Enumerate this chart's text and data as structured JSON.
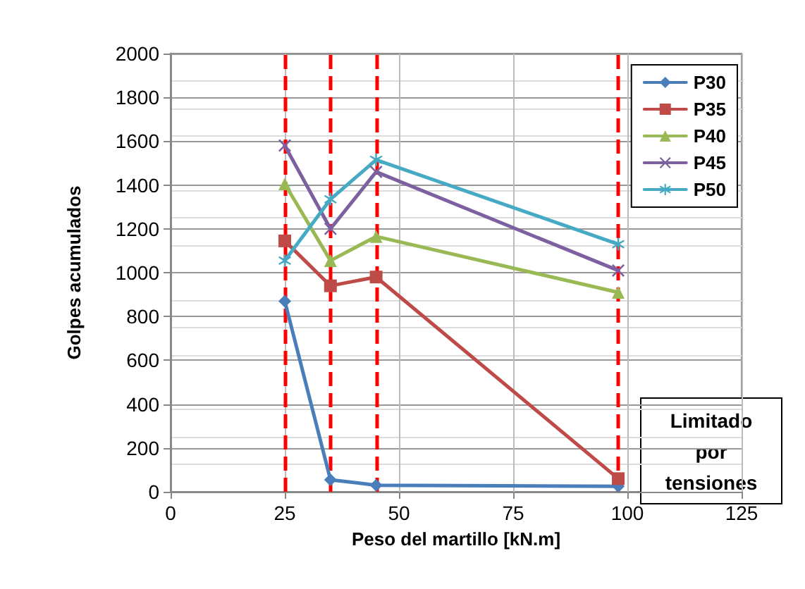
{
  "chart_data": {
    "type": "line",
    "xlabel": "Peso del martillo [kN.m]",
    "ylabel": "Golpes acumulados",
    "xlim": [
      0,
      125
    ],
    "xticks": [
      0,
      25,
      50,
      75,
      100,
      125
    ],
    "ylim": [
      0,
      2000
    ],
    "yticks": [
      0,
      200,
      400,
      600,
      800,
      1000,
      1200,
      1400,
      1600,
      1800,
      2000
    ],
    "grid": true,
    "legend": "top right",
    "line_style": "solid",
    "series": [
      {
        "name": "P30",
        "color": "#4a7ebb",
        "marker": "diamond",
        "x": [
          25,
          35,
          45,
          98
        ],
        "values": [
          870,
          55,
          30,
          25
        ]
      },
      {
        "name": "P35",
        "color": "#be4b48",
        "marker": "square",
        "x": [
          25,
          35,
          45,
          98
        ],
        "values": [
          1145,
          940,
          980,
          60
        ]
      },
      {
        "name": "P40",
        "color": "#98b954",
        "marker": "triangle",
        "x": [
          25,
          35,
          45,
          98
        ],
        "values": [
          1405,
          1055,
          1165,
          910
        ]
      },
      {
        "name": "P45",
        "color": "#7d60a0",
        "marker": "cross",
        "x": [
          25,
          35,
          45,
          98
        ],
        "values": [
          1580,
          1200,
          1460,
          1010
        ]
      },
      {
        "name": "P50",
        "color": "#46aac5",
        "marker": "star",
        "x": [
          25,
          35,
          45,
          98
        ],
        "values": [
          1055,
          1335,
          1515,
          1130
        ]
      }
    ],
    "ref_lines": [
      {
        "axis": "x",
        "value": 25,
        "color": "#ff0000",
        "line_style": "dashed"
      },
      {
        "axis": "x",
        "value": 35,
        "color": "#ff0000",
        "line_style": "dashed"
      },
      {
        "axis": "x",
        "value": 45,
        "color": "#ff0000",
        "line_style": "dashed"
      },
      {
        "axis": "x",
        "value": 98,
        "color": "#ff0000",
        "line_style": "dashed"
      }
    ],
    "annotations": [
      "Limitado por tensiones"
    ]
  }
}
